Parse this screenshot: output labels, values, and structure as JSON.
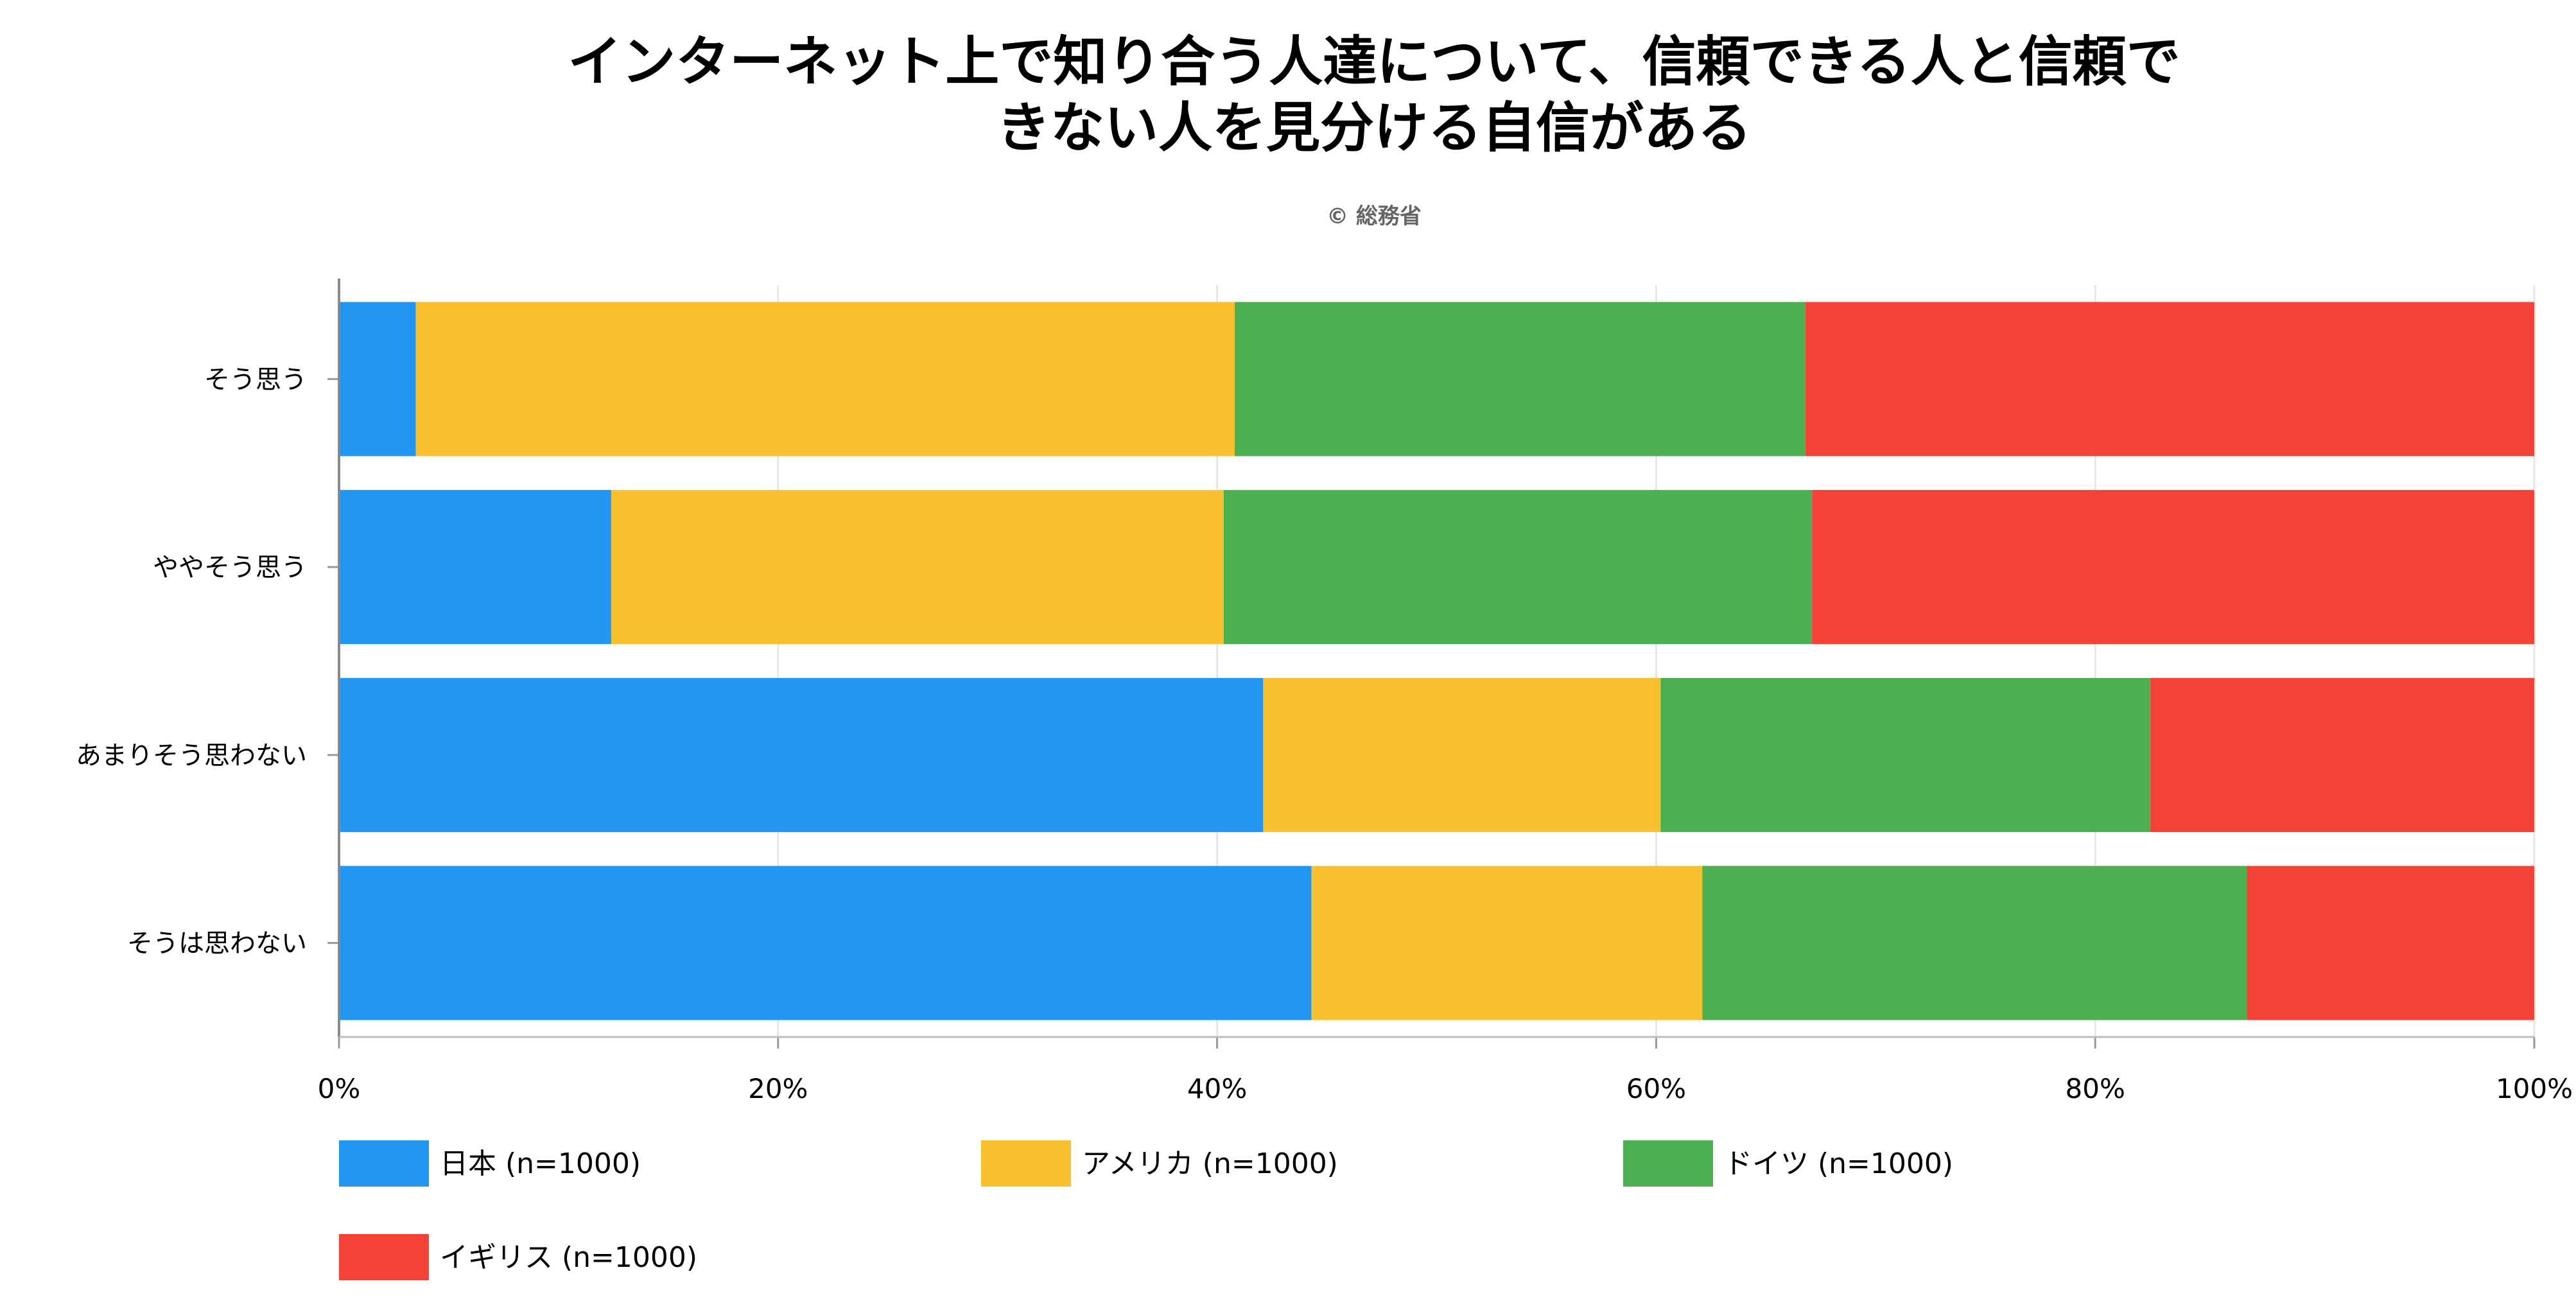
{
  "chart_data": {
    "type": "bar",
    "orientation": "horizontal",
    "stacked": "percent",
    "title": "インターネット上で知り合う人達について、信頼できる人と信頼できない人を見分ける自信がある",
    "title_lines": [
      "インターネット上で知り合う人達について、信頼できる人と信頼で",
      "きない人を見分ける自信がある"
    ],
    "subtitle": "© 総務省",
    "categories": [
      "そう思う",
      "ややそう思う",
      "あまりそう思わない",
      "そうは思わない"
    ],
    "series": [
      {
        "name": "日本 (n=1000)",
        "color": "#2196F3",
        "values": [
          3.5,
          12.4,
          42.1,
          44.3
        ]
      },
      {
        "name": "アメリカ (n=1000)",
        "color": "#FBC02D",
        "values": [
          37.3,
          27.9,
          18.1,
          17.8
        ]
      },
      {
        "name": "ドイツ (n=1000)",
        "color": "#4CAF50",
        "values": [
          26.0,
          26.8,
          22.3,
          24.8
        ]
      },
      {
        "name": "イギリス (n=1000)",
        "color": "#F44336",
        "values": [
          33.2,
          32.9,
          17.5,
          13.1
        ]
      }
    ],
    "xticks": [
      "0%",
      "20%",
      "40%",
      "60%",
      "80%",
      "100%"
    ],
    "xlim": [
      0,
      100
    ],
    "xlabel": "",
    "ylabel": "",
    "grid": true,
    "legend_position": "bottom"
  }
}
